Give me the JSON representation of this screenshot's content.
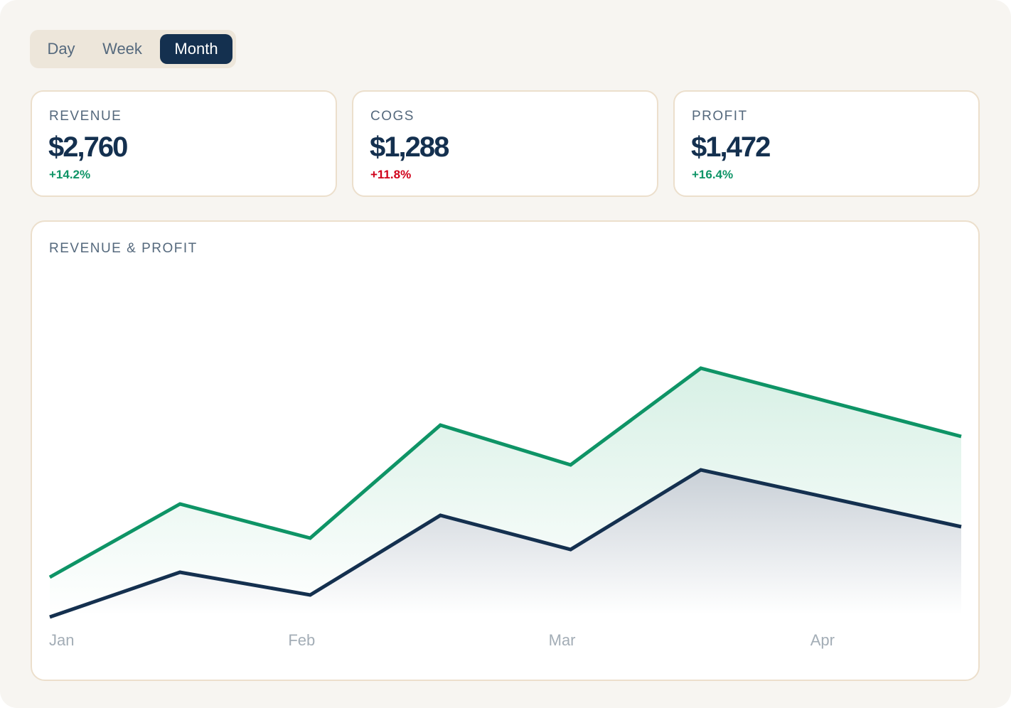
{
  "tabs": {
    "items": [
      "Day",
      "Week",
      "Month"
    ],
    "active": 2
  },
  "cards": [
    {
      "label": "REVENUE",
      "value": "$2,760",
      "change": "+14.2%",
      "change_color": "#0e9466"
    },
    {
      "label": "COGS",
      "value": "$1,288",
      "change": "+11.8%",
      "change_color": "#d0021b"
    },
    {
      "label": "PROFIT",
      "value": "$1,472",
      "change": "+16.4%",
      "change_color": "#0e9466"
    }
  ],
  "chart_data": {
    "type": "area",
    "title": "REVENUE & PROFIT",
    "categories": [
      "Jan",
      null,
      "Feb",
      null,
      "Mar",
      null,
      "Apr",
      null
    ],
    "ylim": [
      0,
      100
    ],
    "series": [
      {
        "color": "#0e9466",
        "fill_top": "#d7f0e5",
        "values": [
          13.6,
          34.2,
          24.6,
          56.4,
          45.2,
          72.4,
          62.8,
          53.2
        ]
      },
      {
        "color": "#14304f",
        "fill_top": "#c9d0d7",
        "values": [
          2.4,
          15,
          8.6,
          31,
          21.4,
          43.8,
          35.8,
          27.8
        ]
      }
    ]
  }
}
